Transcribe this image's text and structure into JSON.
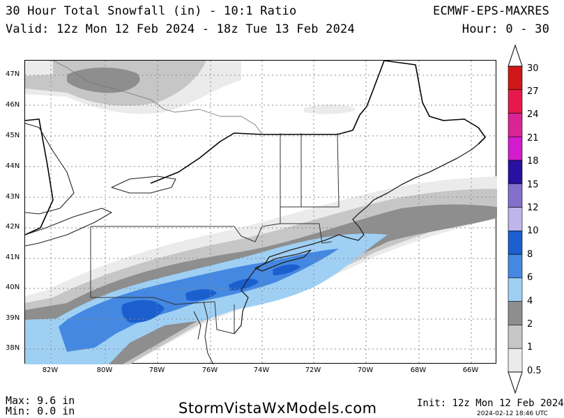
{
  "header": {
    "title": "30 Hour Total Snowfall (in) - 10:1 Ratio",
    "valid": "Valid: 12z Mon 12 Feb 2024 - 18z Tue 13 Feb 2024",
    "model": "ECMWF-EPS-MAXRES",
    "hours": "Hour: 0 - 30"
  },
  "map": {
    "lat_labels": [
      "47N",
      "46N",
      "45N",
      "44N",
      "43N",
      "42N",
      "41N",
      "40N",
      "39N",
      "38N"
    ],
    "lon_labels": [
      "82W",
      "80W",
      "78W",
      "76W",
      "74W",
      "72W",
      "70W",
      "68W",
      "66W"
    ],
    "grid": true
  },
  "legend": {
    "labels": [
      "30",
      "27",
      "24",
      "21",
      "18",
      "15",
      "12",
      "10",
      "8",
      "6",
      "4",
      "2",
      "1",
      "0.5"
    ],
    "colors": [
      "#d01717",
      "#e5194c",
      "#da2494",
      "#d21bcd",
      "#2a10a0",
      "#8270cc",
      "#beb5ea",
      "#1b5fcf",
      "#4488e1",
      "#9fd0f4",
      "#8e8e8e",
      "#c6c6c6",
      "#ebebeb"
    ]
  },
  "footer": {
    "max": "Max: 9.6 in",
    "min": "Min: 0.0 in",
    "site": "StormVistaWxModels.com",
    "init": "Init: 12z Mon 12 Feb 2024",
    "timestamp": "2024-02-12 18:46 UTC"
  }
}
